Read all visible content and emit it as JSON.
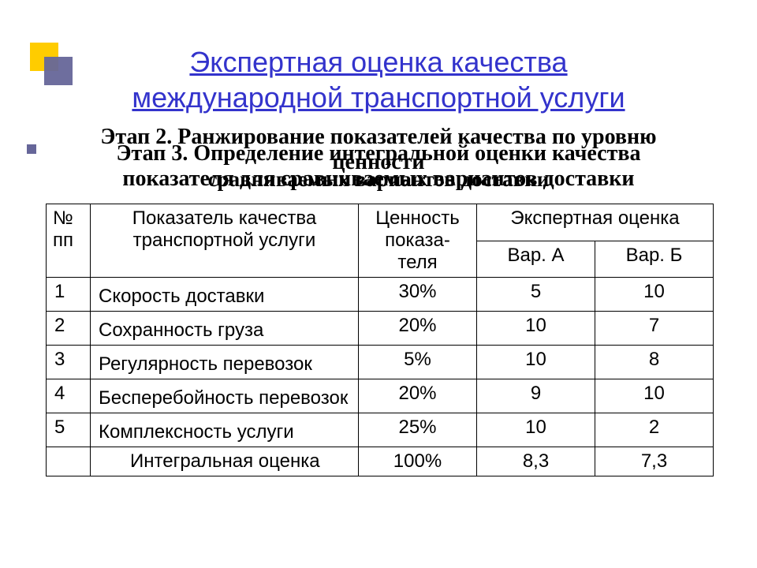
{
  "decor": {
    "yellow": "#ffcc00",
    "blue": "#666699"
  },
  "title_line1": "Экспертная оценка качества",
  "title_line2": "международной транспортной услуги",
  "subtitles": {
    "layer1_a": "Этап 2. Ранжирование показателей качества по уровню",
    "layer1_b": "ценности",
    "overlay_a": "Этап 3. Определение интегральной оценки качества",
    "overlay_b": "показателя для сравниваемых вариантов доставки",
    "overlay_c": "сравниваемых вариантов доставки"
  },
  "table": {
    "head": {
      "num": "№ пп",
      "indicator": "Показатель качества транспортной услуги",
      "value": "Ценность показа-теля",
      "expert": "Экспертная оценка",
      "varA": "Вар. А",
      "varB": "Вар. Б"
    },
    "rows": [
      {
        "n": "1",
        "ind": "Скорость доставки",
        "val": "30%",
        "a": "5",
        "b": "10"
      },
      {
        "n": "2",
        "ind": "Сохранность груза",
        "val": "20%",
        "a": "10",
        "b": "7"
      },
      {
        "n": "3",
        "ind": "Регулярность перевозок",
        "val": "5%",
        "a": "10",
        "b": "8"
      },
      {
        "n": "4",
        "ind": "Бесперебойность перевозок",
        "val": "20%",
        "a": "9",
        "b": "10"
      },
      {
        "n": "5",
        "ind": "Комплексность услуги",
        "val": "25%",
        "a": "10",
        "b": "2"
      }
    ],
    "footer": {
      "ind": "Интегральная оценка",
      "val": "100%",
      "a": "8,3",
      "b": "7,3"
    }
  }
}
